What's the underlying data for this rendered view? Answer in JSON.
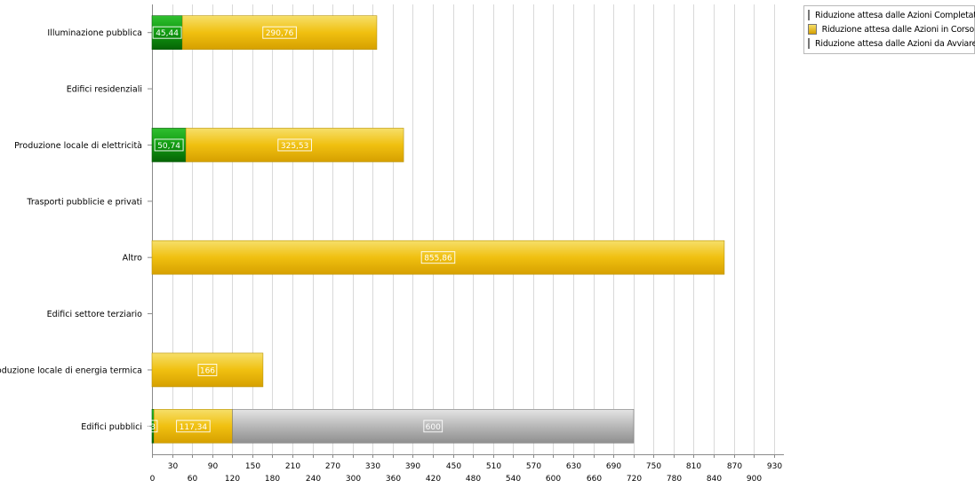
{
  "chart_data": {
    "type": "bar",
    "orientation": "horizontal",
    "stacked": true,
    "categories": [
      "Illuminazione pubblica",
      "Edifici residenziali",
      "Produzione locale di elettricità",
      "Trasporti pubblicie e privati",
      "Altro",
      "Edifici settore terziario",
      "Produzione locale di energia termica",
      "Edifici pubblici"
    ],
    "series": [
      {
        "name": "Riduzione attesa dalle Azioni Completate",
        "color": "#1e9a1e",
        "values": [
          45.44,
          0,
          50.74,
          0,
          0,
          0,
          0,
          3
        ],
        "labels": [
          "45,44",
          "",
          "50,74",
          "",
          "",
          "",
          "",
          "3"
        ]
      },
      {
        "name": "Riduzione attesa dalle Azioni in Corso",
        "color": "#f2c200",
        "values": [
          290.76,
          0,
          325.53,
          0,
          855.86,
          0,
          166,
          117.34
        ],
        "labels": [
          "290,76",
          "",
          "325,53",
          "",
          "855,86",
          "",
          "166",
          "117,34"
        ]
      },
      {
        "name": "Riduzione attesa dalle Azioni da Avviare",
        "color": "#b4b4b4",
        "values": [
          0,
          0,
          0,
          0,
          0,
          0,
          0,
          600
        ],
        "labels": [
          "",
          "",
          "",
          "",
          "",
          "",
          "",
          "600"
        ]
      }
    ],
    "xlim": [
      0,
      945
    ],
    "x_ticks": [
      "0",
      "30",
      "60",
      "90",
      "120",
      "150",
      "180",
      "210",
      "240",
      "270",
      "300",
      "330",
      "360",
      "390",
      "420",
      "450",
      "480",
      "510",
      "540",
      "570",
      "600",
      "630",
      "660",
      "690",
      "720",
      "750",
      "780",
      "810",
      "840",
      "870",
      "900",
      "930"
    ],
    "grid": true,
    "legend_position": "top-right"
  }
}
